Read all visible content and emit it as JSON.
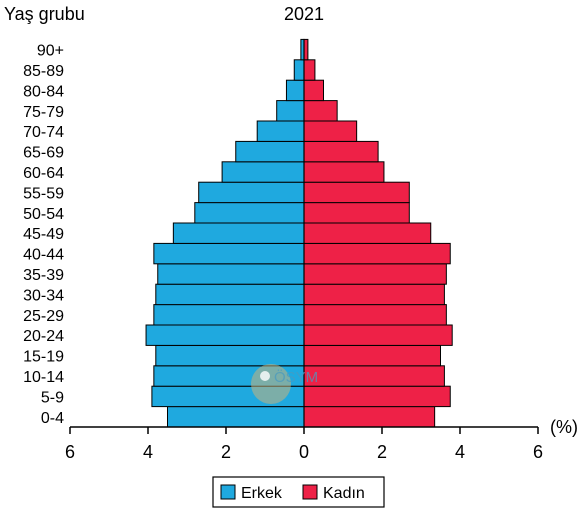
{
  "chart_data": {
    "type": "bar",
    "orientation": "horizontal",
    "title": "2021",
    "ylabel": "Yaş grubu",
    "xlabel": "(%)",
    "categories": [
      "0-4",
      "5-9",
      "10-14",
      "15-19",
      "20-24",
      "25-29",
      "30-34",
      "35-39",
      "40-44",
      "45-49",
      "50-54",
      "55-59",
      "60-64",
      "65-69",
      "70-74",
      "75-79",
      "80-84",
      "85-89",
      "90+"
    ],
    "series": [
      {
        "name": "Erkek",
        "color": "#1fa9df",
        "values": [
          3.5,
          3.9,
          3.85,
          3.8,
          4.05,
          3.85,
          3.8,
          3.75,
          3.85,
          3.35,
          2.8,
          2.7,
          2.1,
          1.75,
          1.2,
          0.7,
          0.45,
          0.25,
          0.08
        ]
      },
      {
        "name": "Kadın",
        "color": "#ee2147",
        "values": [
          3.35,
          3.75,
          3.6,
          3.5,
          3.8,
          3.65,
          3.6,
          3.65,
          3.75,
          3.25,
          2.7,
          2.7,
          2.05,
          1.9,
          1.35,
          0.85,
          0.5,
          0.28,
          0.1
        ]
      }
    ],
    "xlim": [
      -6,
      6
    ],
    "xticks": [
      {
        "value": -6,
        "label": "6"
      },
      {
        "value": -4,
        "label": "4"
      },
      {
        "value": -2,
        "label": "2"
      },
      {
        "value": 0,
        "label": "0"
      },
      {
        "value": 2,
        "label": "2"
      },
      {
        "value": 4,
        "label": "4"
      },
      {
        "value": 6,
        "label": "6"
      }
    ],
    "grid": false,
    "legend_position": "bottom-center",
    "watermark": "ÖSYM"
  }
}
